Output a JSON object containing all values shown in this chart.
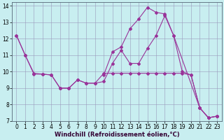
{
  "xlabel": "Windchill (Refroidissement éolien,°C)",
  "bg_color": "#c8eef0",
  "grid_color": "#9999bb",
  "line_color": "#993399",
  "line1_x": [
    0,
    1,
    2,
    3,
    4,
    5,
    6,
    7,
    8,
    9,
    10,
    11,
    12,
    13,
    14,
    15,
    16,
    17,
    18,
    19,
    20,
    21,
    22,
    23
  ],
  "line1_y": [
    12.2,
    11.0,
    9.9,
    9.85,
    9.8,
    9.0,
    9.0,
    9.5,
    9.3,
    9.3,
    9.4,
    10.5,
    11.3,
    10.5,
    10.5,
    11.4,
    12.2,
    13.4,
    12.2,
    10.0,
    9.8,
    7.8,
    7.2,
    7.3
  ],
  "line2_x": [
    10,
    11,
    12,
    13,
    14,
    15,
    16,
    17,
    18,
    21,
    22,
    23
  ],
  "line2_y": [
    9.8,
    11.2,
    11.5,
    12.6,
    13.2,
    13.9,
    13.6,
    13.5,
    12.2,
    7.8,
    7.2,
    7.3
  ],
  "line3_x": [
    0,
    1,
    2,
    3,
    4,
    5,
    6,
    7,
    8,
    9,
    10,
    11,
    12,
    13,
    14,
    15,
    16,
    17,
    18,
    19,
    20,
    21,
    22,
    23
  ],
  "line3_y": [
    12.2,
    11.0,
    9.85,
    9.85,
    9.8,
    9.0,
    9.0,
    9.5,
    9.3,
    9.3,
    9.9,
    9.9,
    9.9,
    9.9,
    9.9,
    9.9,
    9.9,
    9.9,
    9.9,
    9.9,
    9.8,
    7.8,
    7.2,
    7.3
  ],
  "xlim": [
    -0.5,
    23.5
  ],
  "ylim": [
    7,
    14.2
  ],
  "yticks": [
    7,
    8,
    9,
    10,
    11,
    12,
    13,
    14
  ],
  "xticks": [
    0,
    1,
    2,
    3,
    4,
    5,
    6,
    7,
    8,
    9,
    10,
    11,
    12,
    13,
    14,
    15,
    16,
    17,
    18,
    19,
    20,
    21,
    22,
    23
  ],
  "tick_fontsize": 5.5,
  "xlabel_fontsize": 6.0
}
